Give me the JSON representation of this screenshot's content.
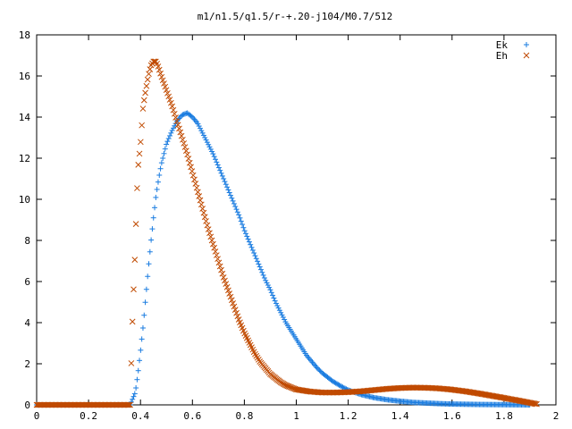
{
  "chart_data": {
    "type": "scatter",
    "title": "m1/n1.5/q1.5/r-+.20-j104/M0.7/512",
    "xlabel": "",
    "ylabel": "",
    "xlim": [
      0,
      2
    ],
    "ylim": [
      0,
      18
    ],
    "xticks": [
      0,
      0.2,
      0.4,
      0.6,
      0.8,
      1,
      1.2,
      1.4,
      1.6,
      1.8,
      2
    ],
    "xtick_labels": [
      "0",
      "0.2",
      "0.4",
      "0.6",
      "0.8",
      "1",
      "1.2",
      "1.4",
      "1.6",
      "1.8",
      "2"
    ],
    "yticks": [
      0,
      2,
      4,
      6,
      8,
      10,
      12,
      14,
      16,
      18
    ],
    "ytick_labels": [
      "0",
      "2",
      "4",
      "6",
      "8",
      "10",
      "12",
      "14",
      "16",
      "18"
    ],
    "grid": false,
    "legend_position": "top-right",
    "series": [
      {
        "name": "Ek",
        "marker": "plus",
        "color": "#1a7ce0",
        "points": [
          [
            0.0,
            0
          ],
          [
            0.1,
            0
          ],
          [
            0.2,
            0
          ],
          [
            0.3,
            0
          ],
          [
            0.36,
            0
          ],
          [
            0.38,
            0.6
          ],
          [
            0.39,
            1.5
          ],
          [
            0.4,
            2.6
          ],
          [
            0.41,
            3.8
          ],
          [
            0.42,
            5.2
          ],
          [
            0.43,
            6.6
          ],
          [
            0.44,
            7.9
          ],
          [
            0.45,
            9.1
          ],
          [
            0.46,
            10.2
          ],
          [
            0.47,
            11.0
          ],
          [
            0.48,
            11.7
          ],
          [
            0.49,
            12.2
          ],
          [
            0.5,
            12.7
          ],
          [
            0.52,
            13.3
          ],
          [
            0.54,
            13.8
          ],
          [
            0.56,
            14.1
          ],
          [
            0.58,
            14.2
          ],
          [
            0.6,
            14.0
          ],
          [
            0.62,
            13.7
          ],
          [
            0.64,
            13.2
          ],
          [
            0.66,
            12.7
          ],
          [
            0.68,
            12.2
          ],
          [
            0.7,
            11.6
          ],
          [
            0.72,
            11.0
          ],
          [
            0.74,
            10.4
          ],
          [
            0.76,
            9.8
          ],
          [
            0.78,
            9.2
          ],
          [
            0.8,
            8.5
          ],
          [
            0.82,
            7.9
          ],
          [
            0.84,
            7.3
          ],
          [
            0.86,
            6.7
          ],
          [
            0.88,
            6.1
          ],
          [
            0.9,
            5.6
          ],
          [
            0.92,
            5.0
          ],
          [
            0.94,
            4.5
          ],
          [
            0.96,
            4.0
          ],
          [
            0.98,
            3.6
          ],
          [
            1.0,
            3.2
          ],
          [
            1.02,
            2.8
          ],
          [
            1.04,
            2.4
          ],
          [
            1.06,
            2.1
          ],
          [
            1.08,
            1.8
          ],
          [
            1.1,
            1.55
          ],
          [
            1.12,
            1.35
          ],
          [
            1.14,
            1.15
          ],
          [
            1.16,
            1.0
          ],
          [
            1.18,
            0.85
          ],
          [
            1.2,
            0.72
          ],
          [
            1.25,
            0.5
          ],
          [
            1.3,
            0.35
          ],
          [
            1.35,
            0.25
          ],
          [
            1.4,
            0.18
          ],
          [
            1.45,
            0.12
          ],
          [
            1.5,
            0.09
          ],
          [
            1.55,
            0.06
          ],
          [
            1.6,
            0.04
          ],
          [
            1.7,
            0.02
          ],
          [
            1.8,
            0.01
          ],
          [
            1.9,
            0
          ]
        ]
      },
      {
        "name": "Eh",
        "marker": "cross",
        "color": "#c04a00",
        "points": [
          [
            0.0,
            0
          ],
          [
            0.1,
            0
          ],
          [
            0.2,
            0
          ],
          [
            0.3,
            0
          ],
          [
            0.36,
            0
          ],
          [
            0.37,
            4.5
          ],
          [
            0.38,
            7.7
          ],
          [
            0.385,
            9.9
          ],
          [
            0.39,
            11.5
          ],
          [
            0.4,
            12.7
          ],
          [
            0.405,
            13.6
          ],
          [
            0.41,
            14.5
          ],
          [
            0.42,
            15.3
          ],
          [
            0.43,
            16.0
          ],
          [
            0.44,
            16.5
          ],
          [
            0.45,
            16.7
          ],
          [
            0.46,
            16.7
          ],
          [
            0.47,
            16.4
          ],
          [
            0.48,
            16.0
          ],
          [
            0.5,
            15.3
          ],
          [
            0.52,
            14.6
          ],
          [
            0.54,
            13.8
          ],
          [
            0.56,
            13.0
          ],
          [
            0.58,
            12.2
          ],
          [
            0.6,
            11.3
          ],
          [
            0.62,
            10.4
          ],
          [
            0.64,
            9.5
          ],
          [
            0.66,
            8.6
          ],
          [
            0.68,
            7.8
          ],
          [
            0.7,
            7.0
          ],
          [
            0.72,
            6.2
          ],
          [
            0.74,
            5.5
          ],
          [
            0.76,
            4.8
          ],
          [
            0.78,
            4.1
          ],
          [
            0.8,
            3.5
          ],
          [
            0.82,
            3.0
          ],
          [
            0.84,
            2.5
          ],
          [
            0.86,
            2.1
          ],
          [
            0.88,
            1.8
          ],
          [
            0.9,
            1.5
          ],
          [
            0.92,
            1.3
          ],
          [
            0.94,
            1.1
          ],
          [
            0.96,
            0.95
          ],
          [
            0.98,
            0.85
          ],
          [
            1.0,
            0.75
          ],
          [
            1.05,
            0.65
          ],
          [
            1.1,
            0.6
          ],
          [
            1.15,
            0.6
          ],
          [
            1.2,
            0.62
          ],
          [
            1.25,
            0.66
          ],
          [
            1.3,
            0.72
          ],
          [
            1.35,
            0.78
          ],
          [
            1.4,
            0.82
          ],
          [
            1.45,
            0.84
          ],
          [
            1.5,
            0.83
          ],
          [
            1.55,
            0.8
          ],
          [
            1.6,
            0.74
          ],
          [
            1.65,
            0.66
          ],
          [
            1.7,
            0.56
          ],
          [
            1.75,
            0.45
          ],
          [
            1.8,
            0.34
          ],
          [
            1.85,
            0.22
          ],
          [
            1.9,
            0.1
          ],
          [
            1.93,
            0.03
          ]
        ]
      }
    ]
  }
}
